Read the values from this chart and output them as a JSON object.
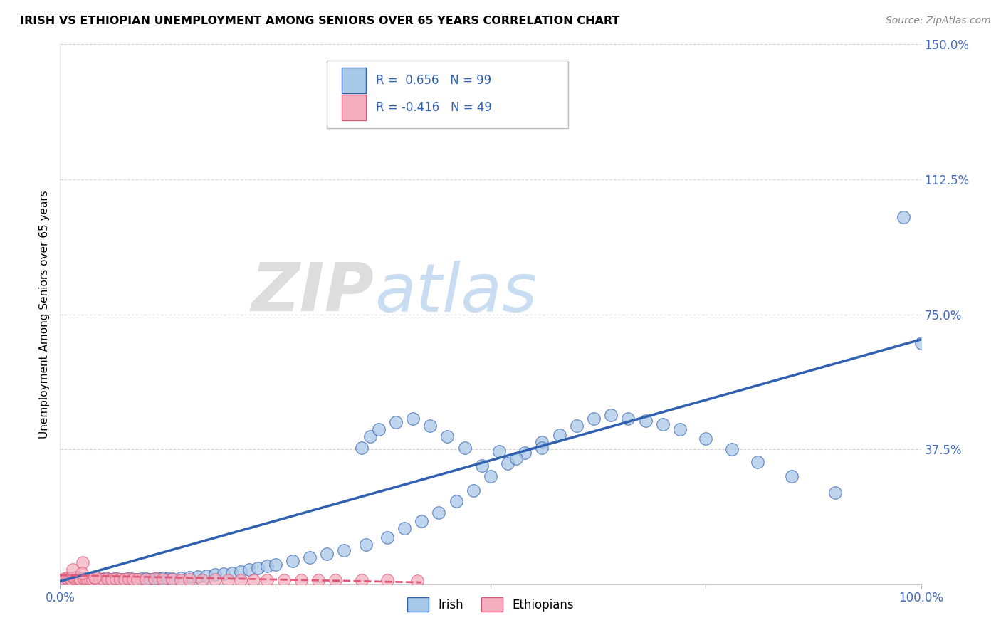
{
  "title": "IRISH VS ETHIOPIAN UNEMPLOYMENT AMONG SENIORS OVER 65 YEARS CORRELATION CHART",
  "source": "Source: ZipAtlas.com",
  "ylabel": "Unemployment Among Seniors over 65 years",
  "xlim": [
    0.0,
    1.0
  ],
  "ylim": [
    0.0,
    1.5
  ],
  "xticks": [
    0.0,
    0.25,
    0.5,
    0.75,
    1.0
  ],
  "xticklabels": [
    "0.0%",
    "",
    "",
    "",
    "100.0%"
  ],
  "yticks": [
    0.375,
    0.75,
    1.125,
    1.5
  ],
  "yticklabels": [
    "37.5%",
    "75.0%",
    "112.5%",
    "150.0%"
  ],
  "irish_R": "0.656",
  "irish_N": "99",
  "ethiopian_R": "-0.416",
  "ethiopian_N": "49",
  "irish_color": "#a8c8e8",
  "ethiopian_color": "#f4b0c0",
  "irish_line_color": "#3060b0",
  "ethiopian_line_color": "#e05878",
  "watermark_zip": "ZIP",
  "watermark_atlas": "atlas",
  "irish_x": [
    0.005,
    0.008,
    0.01,
    0.012,
    0.013,
    0.015,
    0.016,
    0.018,
    0.02,
    0.022,
    0.024,
    0.025,
    0.026,
    0.028,
    0.03,
    0.032,
    0.034,
    0.036,
    0.038,
    0.04,
    0.042,
    0.044,
    0.046,
    0.048,
    0.05,
    0.052,
    0.055,
    0.058,
    0.06,
    0.063,
    0.066,
    0.07,
    0.074,
    0.078,
    0.082,
    0.086,
    0.09,
    0.095,
    0.1,
    0.105,
    0.11,
    0.115,
    0.12,
    0.125,
    0.13,
    0.14,
    0.15,
    0.16,
    0.17,
    0.18,
    0.19,
    0.2,
    0.21,
    0.22,
    0.23,
    0.24,
    0.25,
    0.27,
    0.29,
    0.31,
    0.33,
    0.355,
    0.38,
    0.4,
    0.42,
    0.44,
    0.46,
    0.48,
    0.5,
    0.52,
    0.54,
    0.56,
    0.58,
    0.6,
    0.62,
    0.64,
    0.66,
    0.68,
    0.7,
    0.72,
    0.75,
    0.78,
    0.81,
    0.85,
    0.9,
    0.35,
    0.36,
    0.37,
    0.39,
    0.41,
    0.43,
    0.45,
    0.47,
    0.49,
    0.51,
    0.53,
    0.56,
    0.98,
    1.0
  ],
  "irish_y": [
    0.01,
    0.015,
    0.012,
    0.018,
    0.014,
    0.016,
    0.013,
    0.019,
    0.015,
    0.017,
    0.013,
    0.018,
    0.014,
    0.016,
    0.012,
    0.015,
    0.013,
    0.016,
    0.014,
    0.015,
    0.013,
    0.016,
    0.014,
    0.012,
    0.015,
    0.013,
    0.016,
    0.014,
    0.013,
    0.015,
    0.016,
    0.014,
    0.013,
    0.015,
    0.016,
    0.014,
    0.013,
    0.015,
    0.016,
    0.014,
    0.015,
    0.016,
    0.018,
    0.015,
    0.016,
    0.018,
    0.02,
    0.022,
    0.024,
    0.026,
    0.028,
    0.03,
    0.035,
    0.04,
    0.045,
    0.05,
    0.055,
    0.065,
    0.075,
    0.085,
    0.095,
    0.11,
    0.13,
    0.155,
    0.175,
    0.2,
    0.23,
    0.26,
    0.3,
    0.335,
    0.365,
    0.395,
    0.415,
    0.44,
    0.46,
    0.47,
    0.46,
    0.455,
    0.445,
    0.43,
    0.405,
    0.375,
    0.34,
    0.3,
    0.255,
    0.38,
    0.41,
    0.43,
    0.45,
    0.46,
    0.44,
    0.41,
    0.38,
    0.33,
    0.37,
    0.35,
    0.38,
    1.02,
    0.67
  ],
  "ethiopian_x": [
    0.005,
    0.008,
    0.01,
    0.012,
    0.014,
    0.016,
    0.018,
    0.02,
    0.022,
    0.024,
    0.026,
    0.028,
    0.03,
    0.032,
    0.035,
    0.038,
    0.042,
    0.046,
    0.05,
    0.055,
    0.06,
    0.065,
    0.07,
    0.075,
    0.08,
    0.085,
    0.09,
    0.1,
    0.11,
    0.12,
    0.13,
    0.14,
    0.15,
    0.165,
    0.18,
    0.195,
    0.21,
    0.225,
    0.24,
    0.26,
    0.28,
    0.3,
    0.32,
    0.35,
    0.38,
    0.415,
    0.015,
    0.025,
    0.04
  ],
  "ethiopian_y": [
    0.015,
    0.018,
    0.014,
    0.016,
    0.012,
    0.018,
    0.015,
    0.013,
    0.016,
    0.014,
    0.06,
    0.015,
    0.013,
    0.016,
    0.014,
    0.013,
    0.016,
    0.014,
    0.013,
    0.015,
    0.013,
    0.016,
    0.014,
    0.013,
    0.015,
    0.013,
    0.014,
    0.013,
    0.015,
    0.013,
    0.014,
    0.012,
    0.013,
    0.012,
    0.013,
    0.012,
    0.011,
    0.012,
    0.011,
    0.012,
    0.011,
    0.012,
    0.011,
    0.011,
    0.011,
    0.01,
    0.04,
    0.03,
    0.02
  ],
  "background_color": "#ffffff",
  "grid_color": "#cccccc",
  "irish_trend_x": [
    0.0,
    1.0
  ],
  "irish_trend_y": [
    0.008,
    0.68
  ],
  "ethiopian_trend_x": [
    0.0,
    0.42
  ],
  "ethiopian_trend_y": [
    0.025,
    0.005
  ]
}
